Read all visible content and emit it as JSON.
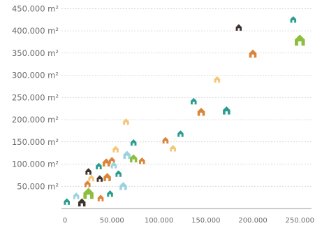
{
  "chart_data": {
    "type": "scatter",
    "title": "",
    "xlabel": "",
    "ylabel": "",
    "xlim": [
      0,
      255000
    ],
    "ylim": [
      0,
      460000
    ],
    "x_ticks": [
      0,
      50000,
      100000,
      150000,
      200000,
      250000
    ],
    "x_tick_labels": [
      "0",
      "50.000",
      "100.000",
      "150.000",
      "200.000",
      "250.000"
    ],
    "y_ticks": [
      50000,
      100000,
      150000,
      200000,
      250000,
      300000,
      350000,
      400000,
      450000
    ],
    "y_tick_labels": [
      "50.000 m²",
      "100.000 m²",
      "150.000 m²",
      "200.000 m²",
      "250.000 m²",
      "300.000 m²",
      "350.000 m²",
      "400.000 m²",
      "450.000 m²"
    ],
    "grid": true,
    "marker": "house",
    "points": [
      {
        "x": 2000,
        "y": 15000,
        "color": "#2a9d8f",
        "size": "s"
      },
      {
        "x": 18000,
        "y": 13000,
        "color": "#3d342e",
        "size": "m"
      },
      {
        "x": 12000,
        "y": 28000,
        "color": "#9bd3e0",
        "size": "s"
      },
      {
        "x": 25000,
        "y": 33000,
        "color": "#8cbf3f",
        "size": "l"
      },
      {
        "x": 38000,
        "y": 23000,
        "color": "#d9843a",
        "size": "s"
      },
      {
        "x": 24000,
        "y": 55000,
        "color": "#d9843a",
        "size": "s"
      },
      {
        "x": 28000,
        "y": 68000,
        "color": "#f3c777",
        "size": "s"
      },
      {
        "x": 37000,
        "y": 67000,
        "color": "#3d342e",
        "size": "s"
      },
      {
        "x": 45000,
        "y": 70000,
        "color": "#d9843a",
        "size": "m"
      },
      {
        "x": 48000,
        "y": 33000,
        "color": "#2a9d8f",
        "size": "s"
      },
      {
        "x": 57000,
        "y": 78000,
        "color": "#2a9d8f",
        "size": "s"
      },
      {
        "x": 62000,
        "y": 50000,
        "color": "#9bd3e0",
        "size": "m"
      },
      {
        "x": 25000,
        "y": 83000,
        "color": "#3d342e",
        "size": "s"
      },
      {
        "x": 36000,
        "y": 95000,
        "color": "#2a9d8f",
        "size": "s"
      },
      {
        "x": 44000,
        "y": 103000,
        "color": "#d9843a",
        "size": "m"
      },
      {
        "x": 50000,
        "y": 108000,
        "color": "#d9843a",
        "size": "s"
      },
      {
        "x": 52000,
        "y": 97000,
        "color": "#9bd3e0",
        "size": "s"
      },
      {
        "x": 54000,
        "y": 133000,
        "color": "#f3c777",
        "size": "s"
      },
      {
        "x": 66000,
        "y": 120000,
        "color": "#9bd3e0",
        "size": "m"
      },
      {
        "x": 73000,
        "y": 112000,
        "color": "#8cbf3f",
        "size": "m"
      },
      {
        "x": 82000,
        "y": 107000,
        "color": "#d9843a",
        "size": "s"
      },
      {
        "x": 73000,
        "y": 148000,
        "color": "#2a9d8f",
        "size": "s"
      },
      {
        "x": 65000,
        "y": 195000,
        "color": "#f3c777",
        "size": "s"
      },
      {
        "x": 107000,
        "y": 153000,
        "color": "#d9843a",
        "size": "s"
      },
      {
        "x": 115000,
        "y": 135000,
        "color": "#f3c777",
        "size": "s"
      },
      {
        "x": 123000,
        "y": 168000,
        "color": "#2a9d8f",
        "size": "s"
      },
      {
        "x": 137000,
        "y": 241000,
        "color": "#2a9d8f",
        "size": "s"
      },
      {
        "x": 145000,
        "y": 217000,
        "color": "#d9843a",
        "size": "m"
      },
      {
        "x": 162000,
        "y": 290000,
        "color": "#f3c777",
        "size": "s"
      },
      {
        "x": 172000,
        "y": 220000,
        "color": "#2a9d8f",
        "size": "m"
      },
      {
        "x": 185000,
        "y": 407000,
        "color": "#3d342e",
        "size": "s"
      },
      {
        "x": 200000,
        "y": 348000,
        "color": "#d9843a",
        "size": "m"
      },
      {
        "x": 243000,
        "y": 425000,
        "color": "#2a9d8f",
        "size": "s"
      },
      {
        "x": 250000,
        "y": 378000,
        "color": "#8cbf3f",
        "size": "l"
      }
    ]
  }
}
